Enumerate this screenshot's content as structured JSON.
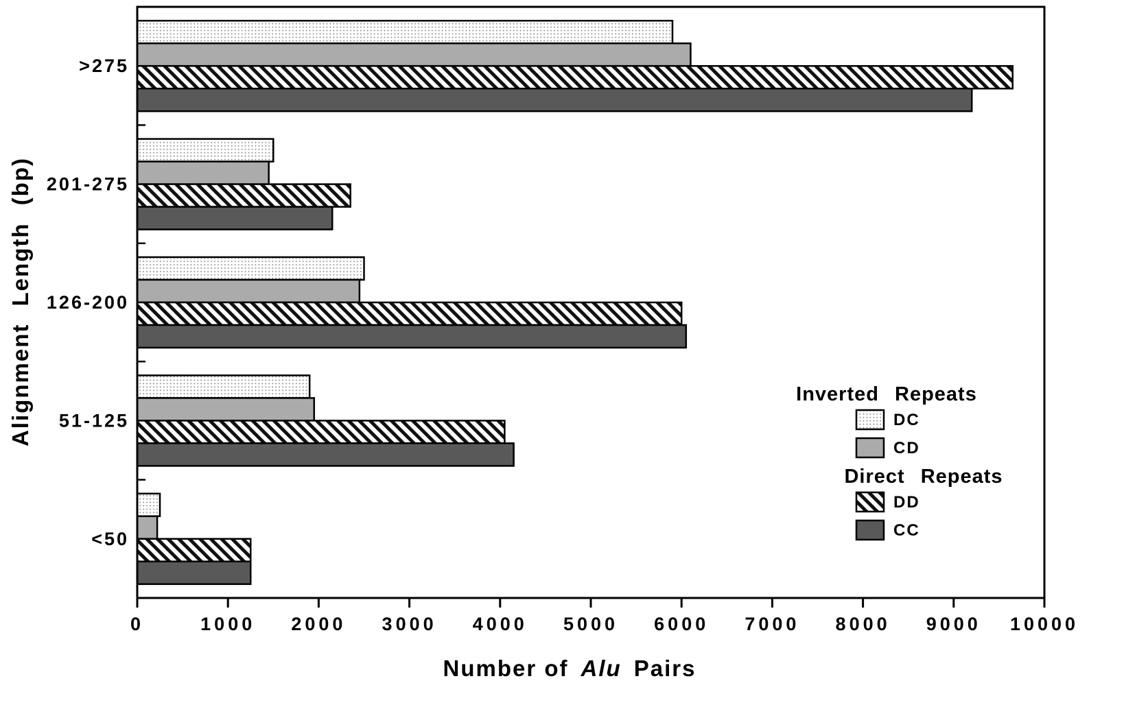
{
  "chart_data": {
    "type": "bar",
    "orientation": "horizontal",
    "title": "",
    "xlabel": "Number of Alu Pairs",
    "xlabel_parts": {
      "prefix": "Number of",
      "italic": "Alu",
      "suffix": "Pairs"
    },
    "ylabel": "Alignment Length (bp)",
    "xlim": [
      0,
      10000
    ],
    "xticks": [
      0,
      1000,
      2000,
      3000,
      4000,
      5000,
      6000,
      7000,
      8000,
      9000,
      10000
    ],
    "categories": [
      ">275",
      "201-275",
      "126-200",
      "51-125",
      "<50"
    ],
    "series": [
      {
        "name": "DC",
        "repeat_type": "Inverted Repeats",
        "fill": "dots",
        "color": "#8a8a8a",
        "values": [
          5900,
          1500,
          2500,
          1900,
          250
        ]
      },
      {
        "name": "CD",
        "repeat_type": "Inverted Repeats",
        "fill": "solid",
        "color": "#ababab",
        "values": [
          6100,
          1450,
          2450,
          1950,
          220
        ]
      },
      {
        "name": "DD",
        "repeat_type": "Direct Repeats",
        "fill": "hatch",
        "color": "#111111",
        "values": [
          9650,
          2350,
          6000,
          4050,
          1250
        ]
      },
      {
        "name": "CC",
        "repeat_type": "Direct Repeats",
        "fill": "solid",
        "color": "#595959",
        "values": [
          9200,
          2150,
          6050,
          4150,
          1250
        ]
      }
    ],
    "legend": {
      "position": "inside-right",
      "groups": [
        {
          "title": "Inverted Repeats",
          "items": [
            "DC",
            "CD"
          ]
        },
        {
          "title": "Direct Repeats",
          "items": [
            "DD",
            "CC"
          ]
        }
      ]
    },
    "grid": false,
    "frame_color": "#000000"
  }
}
